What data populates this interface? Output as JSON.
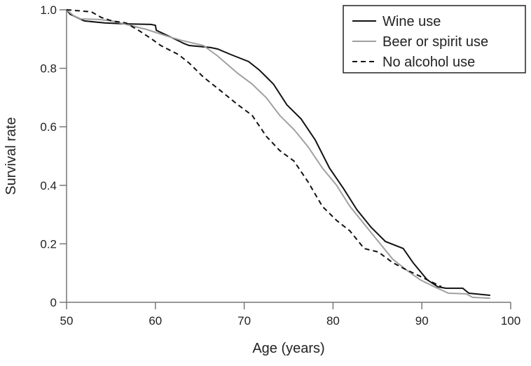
{
  "chart_data": {
    "type": "line",
    "title": "",
    "xlabel": "Age (years)",
    "ylabel": "Survival rate",
    "xlim": [
      50,
      100
    ],
    "ylim": [
      0,
      1.0
    ],
    "xticks": [
      "50",
      "60",
      "70",
      "80",
      "90",
      "100"
    ],
    "yticks": [
      "0",
      "0.2",
      "0.4",
      "0.6",
      "0.8",
      "1.0"
    ],
    "grid": false,
    "legend_position": "top-right",
    "series": [
      {
        "name": "Wine use",
        "color": "#111111",
        "style": "solid",
        "x": [
          50,
          50.4,
          52,
          54.3,
          56.7,
          59.5,
          60,
          60.1,
          62.2,
          63.2,
          63.8,
          66.2,
          67,
          68.5,
          70.5,
          71.7,
          73.3,
          74.8,
          76.4,
          78,
          79.6,
          81.2,
          82.7,
          84.3,
          85.9,
          87.9,
          89,
          90.6,
          91.8,
          92.7,
          94.6,
          95.3,
          97.7
        ],
        "y": [
          1.0,
          0.985,
          0.962,
          0.955,
          0.952,
          0.95,
          0.947,
          0.93,
          0.9,
          0.885,
          0.878,
          0.871,
          0.866,
          0.847,
          0.823,
          0.794,
          0.746,
          0.675,
          0.627,
          0.555,
          0.459,
          0.388,
          0.316,
          0.256,
          0.208,
          0.184,
          0.136,
          0.077,
          0.053,
          0.048,
          0.048,
          0.031,
          0.024
        ]
      },
      {
        "name": "Beer or spirit use",
        "color": "#a0a0a0",
        "style": "solid",
        "x": [
          50,
          50.8,
          51.6,
          53.5,
          55.1,
          56.7,
          59,
          61.4,
          63,
          65.4,
          67,
          69.3,
          70.9,
          72.5,
          74,
          75.6,
          77.2,
          78.8,
          80.4,
          81.9,
          83.5,
          85.1,
          86.7,
          88.2,
          89.8,
          91.4,
          93,
          95,
          95.7,
          97.7
        ],
        "y": [
          1.0,
          0.98,
          0.969,
          0.967,
          0.962,
          0.95,
          0.933,
          0.909,
          0.895,
          0.878,
          0.842,
          0.782,
          0.746,
          0.699,
          0.639,
          0.591,
          0.531,
          0.459,
          0.4,
          0.328,
          0.268,
          0.208,
          0.148,
          0.112,
          0.077,
          0.053,
          0.031,
          0.029,
          0.017,
          0.014
        ]
      },
      {
        "name": "No alcohol use",
        "color": "#111111",
        "style": "dashed",
        "x": [
          50,
          50.8,
          52.8,
          53.9,
          55.1,
          56.7,
          58.3,
          59.5,
          60.6,
          62.6,
          63.8,
          65.4,
          67.4,
          69.3,
          70.9,
          72.5,
          74,
          75.6,
          77.2,
          78.8,
          80.4,
          81.9,
          83.5,
          85.1,
          86.7,
          88.2,
          89.8,
          91.4,
          92.2
        ],
        "y": [
          1.0,
          0.998,
          0.993,
          0.974,
          0.962,
          0.955,
          0.926,
          0.902,
          0.878,
          0.847,
          0.818,
          0.77,
          0.722,
          0.675,
          0.639,
          0.567,
          0.519,
          0.483,
          0.411,
          0.328,
          0.28,
          0.244,
          0.184,
          0.172,
          0.136,
          0.112,
          0.089,
          0.065,
          0.053
        ]
      }
    ]
  }
}
